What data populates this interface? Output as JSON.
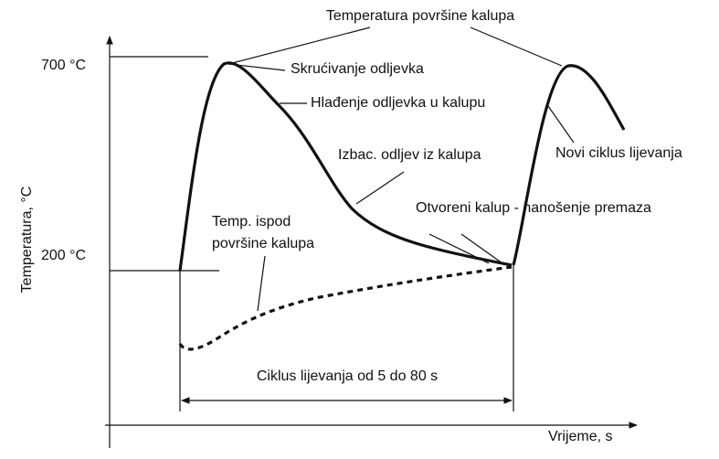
{
  "title": "Temperatura površine kalupa",
  "y_axis": {
    "label": "Temperatura, °C",
    "ticks": [
      "700 °C",
      "200 °C"
    ]
  },
  "x_axis": {
    "label": "Vrijeme, s"
  },
  "annotations": {
    "solidification": "Skrućivanje odljevka",
    "cooling": "Hlađenje odljevka u kalupu",
    "ejection": "Izbac. odljev iz kalupa",
    "new_cycle": "Novi ciklus lijevanja",
    "open_mold": "Otvoreni kalup - nanošenje premaza",
    "subsurface": [
      "Temp. ispod",
      "površine kalupa"
    ],
    "cycle": "Ciklus lijevanja od 5 do 80 s"
  }
}
